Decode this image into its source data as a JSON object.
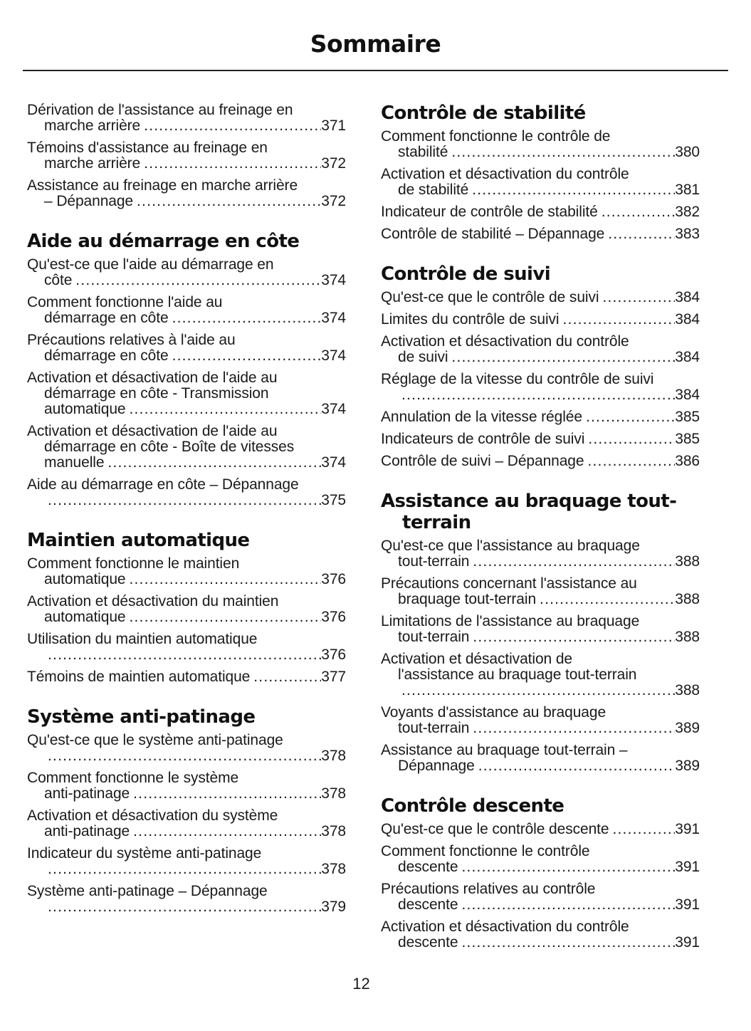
{
  "document": {
    "title": "Sommaire",
    "footer_page_number": "12"
  },
  "toc": {
    "left_column": {
      "sections": [
        {
          "heading_lines": [],
          "entries": [
            {
              "lines": [
                "Dérivation de l'assistance au freinage en",
                "marche arrière"
              ],
              "page": "371"
            },
            {
              "lines": [
                "Témoins d'assistance au freinage en",
                "marche arrière"
              ],
              "page": "372"
            },
            {
              "lines": [
                "Assistance au freinage en marche arrière",
                "– Dépannage"
              ],
              "page": "372"
            }
          ]
        },
        {
          "heading_lines": [
            "Aide au démarrage en côte"
          ],
          "entries": [
            {
              "lines": [
                "Qu'est-ce que l'aide au démarrage en",
                "côte"
              ],
              "page": "374"
            },
            {
              "lines": [
                "Comment fonctionne l'aide au",
                "démarrage en côte"
              ],
              "page": "374"
            },
            {
              "lines": [
                "Précautions relatives à l'aide au",
                "démarrage en côte"
              ],
              "page": "374"
            },
            {
              "lines": [
                "Activation et désactivation de l'aide au",
                "démarrage en côte - Transmission",
                "automatique"
              ],
              "page": "374"
            },
            {
              "lines": [
                "Activation et désactivation de l'aide au",
                "démarrage en côte - Boîte de vitesses",
                "manuelle"
              ],
              "page": "374"
            },
            {
              "lines": [
                "Aide au démarrage en côte – Dépannage",
                ""
              ],
              "page": "375"
            }
          ]
        },
        {
          "heading_lines": [
            "Maintien automatique"
          ],
          "entries": [
            {
              "lines": [
                "Comment fonctionne le maintien",
                "automatique"
              ],
              "page": "376"
            },
            {
              "lines": [
                "Activation et désactivation du maintien",
                "automatique"
              ],
              "page": "376"
            },
            {
              "lines": [
                "Utilisation du maintien automatique",
                ""
              ],
              "page": "376"
            },
            {
              "lines": [
                "Témoins de maintien automatique"
              ],
              "page": "377"
            }
          ]
        },
        {
          "heading_lines": [
            "Système anti-patinage"
          ],
          "entries": [
            {
              "lines": [
                "Qu'est-ce que le système anti-patinage",
                ""
              ],
              "page": "378"
            },
            {
              "lines": [
                "Comment fonctionne le système",
                "anti-patinage"
              ],
              "page": "378"
            },
            {
              "lines": [
                "Activation et désactivation du système",
                "anti-patinage"
              ],
              "page": "378"
            },
            {
              "lines": [
                "Indicateur du système anti-patinage",
                ""
              ],
              "page": "378"
            },
            {
              "lines": [
                "Système anti-patinage – Dépannage",
                ""
              ],
              "page": "379"
            }
          ]
        }
      ]
    },
    "right_column": {
      "sections": [
        {
          "heading_lines": [
            "Contrôle de stabilité"
          ],
          "entries": [
            {
              "lines": [
                "Comment fonctionne le contrôle de",
                "stabilité"
              ],
              "page": "380"
            },
            {
              "lines": [
                "Activation et désactivation du contrôle",
                "de stabilité"
              ],
              "page": "381"
            },
            {
              "lines": [
                "Indicateur de contrôle de stabilité"
              ],
              "page": "382"
            },
            {
              "lines": [
                "Contrôle de stabilité – Dépannage"
              ],
              "page": "383"
            }
          ]
        },
        {
          "heading_lines": [
            "Contrôle de suivi"
          ],
          "entries": [
            {
              "lines": [
                "Qu'est-ce que le contrôle de suivi"
              ],
              "page": "384"
            },
            {
              "lines": [
                "Limites du contrôle de suivi"
              ],
              "page": "384"
            },
            {
              "lines": [
                "Activation et désactivation du contrôle",
                "de suivi"
              ],
              "page": "384"
            },
            {
              "lines": [
                "Réglage de la vitesse du contrôle de suivi",
                ""
              ],
              "page": "384"
            },
            {
              "lines": [
                "Annulation de la vitesse réglée"
              ],
              "page": "385"
            },
            {
              "lines": [
                "Indicateurs de contrôle de suivi"
              ],
              "page": "385"
            },
            {
              "lines": [
                "Contrôle de suivi – Dépannage"
              ],
              "page": "386"
            }
          ]
        },
        {
          "heading_lines": [
            "Assistance au braquage tout-",
            "terrain"
          ],
          "entries": [
            {
              "lines": [
                "Qu'est-ce que l'assistance au braquage",
                "tout-terrain"
              ],
              "page": "388"
            },
            {
              "lines": [
                "Précautions concernant l'assistance au",
                "braquage tout-terrain"
              ],
              "page": "388"
            },
            {
              "lines": [
                "Limitations de l'assistance au braquage",
                "tout-terrain"
              ],
              "page": "388"
            },
            {
              "lines": [
                "Activation et désactivation de",
                "l'assistance au braquage tout-terrain",
                ""
              ],
              "page": "388"
            },
            {
              "lines": [
                "Voyants d'assistance au braquage",
                "tout-terrain"
              ],
              "page": "389"
            },
            {
              "lines": [
                "Assistance au braquage tout-terrain –",
                "Dépannage"
              ],
              "page": "389"
            }
          ]
        },
        {
          "heading_lines": [
            "Contrôle descente"
          ],
          "entries": [
            {
              "lines": [
                "Qu'est-ce que le contrôle descente"
              ],
              "page": "391"
            },
            {
              "lines": [
                "Comment fonctionne le contrôle",
                "descente"
              ],
              "page": "391"
            },
            {
              "lines": [
                "Précautions relatives au contrôle",
                "descente"
              ],
              "page": "391"
            },
            {
              "lines": [
                "Activation et désactivation du contrôle",
                "descente"
              ],
              "page": "391"
            }
          ]
        }
      ]
    }
  }
}
